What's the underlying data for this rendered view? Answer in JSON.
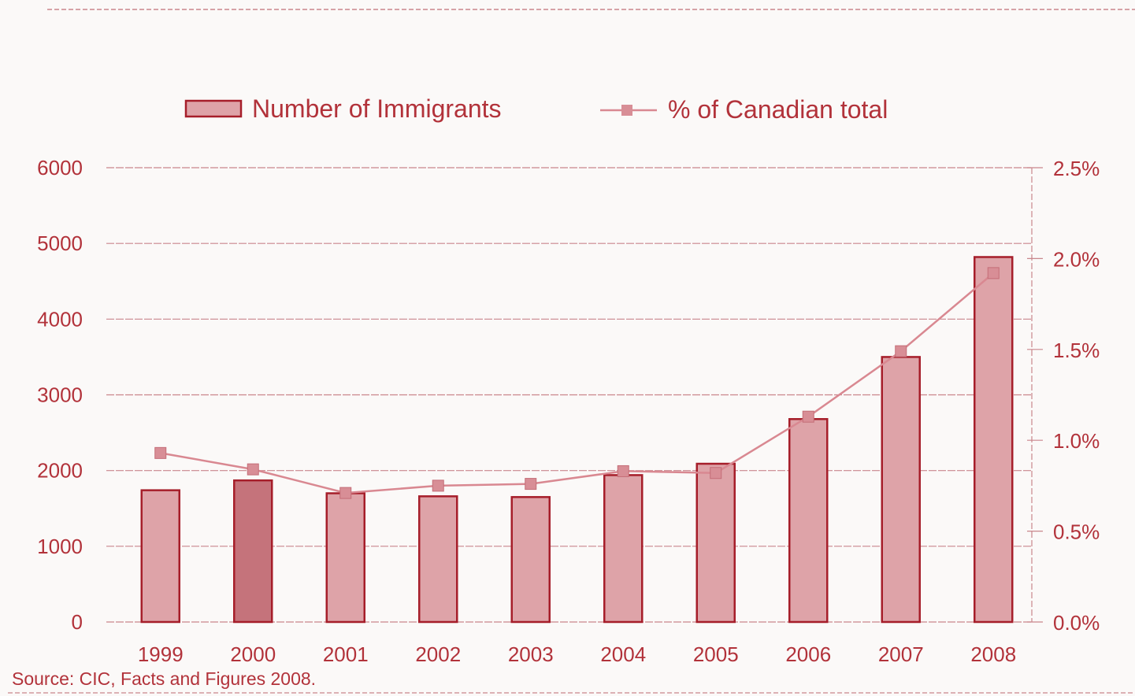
{
  "chart_data": {
    "type": "bar",
    "title": "",
    "xlabel": "",
    "ylabel": "",
    "categories": [
      "1999",
      "2000",
      "2001",
      "2002",
      "2003",
      "2004",
      "2005",
      "2006",
      "2007",
      "2008"
    ],
    "series": [
      {
        "name": "Number of Immigrants",
        "type": "bar",
        "axis": "left",
        "values": [
          1740,
          1870,
          1700,
          1660,
          1650,
          1940,
          2090,
          2680,
          3500,
          4820
        ]
      },
      {
        "name": "% of Canadian total",
        "type": "line",
        "axis": "right",
        "values": [
          0.93,
          0.84,
          0.71,
          0.75,
          0.76,
          0.83,
          0.82,
          1.13,
          1.49,
          1.92
        ]
      }
    ],
    "y_left": {
      "lim": [
        0,
        6000
      ],
      "ticks": [
        0,
        1000,
        2000,
        3000,
        4000,
        5000,
        6000
      ],
      "tick_labels": [
        "0",
        "1000",
        "2000",
        "3000",
        "4000",
        "5000",
        "6000"
      ]
    },
    "y_right": {
      "lim": [
        0,
        2.5
      ],
      "ticks": [
        0,
        0.5,
        1.0,
        1.5,
        2.0,
        2.5
      ],
      "tick_labels": [
        "0.0%",
        "0.5%",
        "1.0%",
        "1.5%",
        "2.0%",
        "2.5%"
      ]
    },
    "grid": true,
    "legend_position": "top-center",
    "source_note": "Source: CIC, Facts and Figures 2008.",
    "colors": {
      "accent": "#b2323a",
      "bar_fill": "#dea3a8",
      "bar_fill_dark": "#c5737b",
      "bar_edge": "#a61e2a",
      "grid": "#c9868c",
      "line": "#d98891",
      "marker": "#d88e96",
      "background": "#fbf9f8"
    }
  }
}
